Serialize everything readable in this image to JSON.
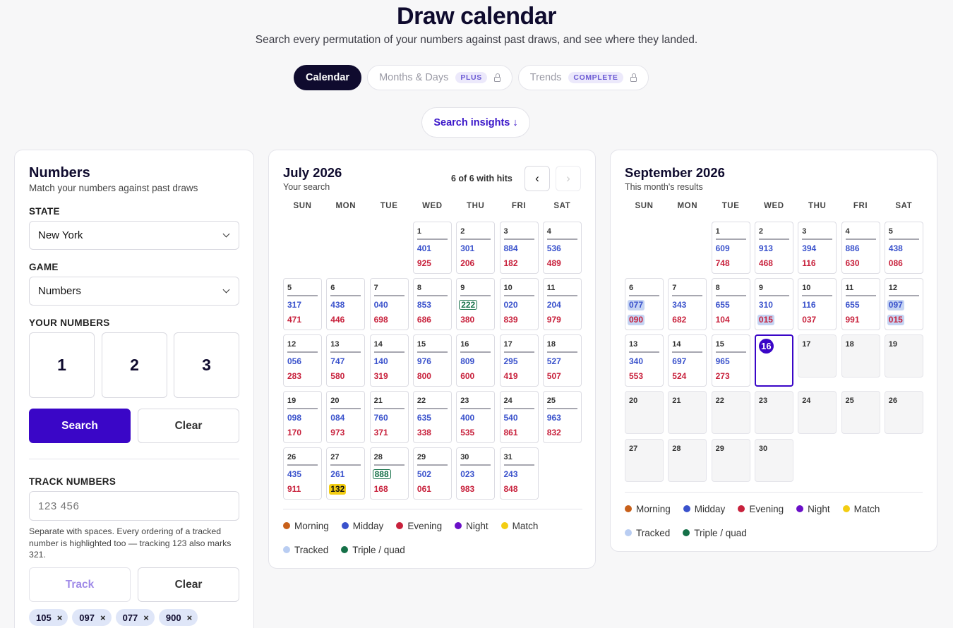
{
  "header": {
    "title": "Draw calendar",
    "subtitle": "Search every permutation of your numbers against past draws, and see where they landed."
  },
  "tabs": [
    {
      "label": "Calendar",
      "active": true
    },
    {
      "label": "Months & Days",
      "badge": "PLUS",
      "locked": true
    },
    {
      "label": "Trends",
      "badge": "COMPLETE",
      "locked": true
    }
  ],
  "insights_button": "Search insights ↓",
  "numbers_panel": {
    "title": "Numbers",
    "hint": "Match your numbers against past draws",
    "state_label": "STATE",
    "state_value": "New York",
    "game_label": "GAME",
    "game_value": "Numbers",
    "your_numbers_label": "YOUR NUMBERS",
    "digits": [
      "1",
      "2",
      "3"
    ],
    "search_label": "Search",
    "clear_label": "Clear",
    "track_label": "TRACK NUMBERS",
    "track_placeholder": "123 456",
    "track_help": "Separate with spaces. Every ordering of a tracked number is highlighted too — tracking 123 also marks 321.",
    "track_button": "Track",
    "track_clear": "Clear",
    "chips": [
      "105",
      "097",
      "077",
      "900"
    ],
    "chip_remove": "×"
  },
  "legend": {
    "colors": {
      "Morning": "#c8601a",
      "Midday": "#3a52cc",
      "Evening": "#c8213c",
      "Night": "#6a0fc8",
      "Match": "#f3cd12",
      "Tracked": "#b9cdf2",
      "Triple / quad": "#157048"
    },
    "items": [
      "Morning",
      "Midday",
      "Evening",
      "Night",
      "Match",
      "Tracked",
      "Triple / quad"
    ]
  },
  "weekdays": [
    "SUN",
    "MON",
    "TUE",
    "WED",
    "THU",
    "FRI",
    "SAT"
  ],
  "calendar_left": {
    "title": "July 2026",
    "subtitle": "Your search",
    "hits": "6 of 6 with hits",
    "prev": "‹",
    "next": "›",
    "first_weekday": 3,
    "days": [
      {
        "d": "1",
        "a": "401",
        "b": "925"
      },
      {
        "d": "2",
        "a": "301",
        "b": "206"
      },
      {
        "d": "3",
        "a": "884",
        "b": "182"
      },
      {
        "d": "4",
        "a": "536",
        "b": "489"
      },
      {
        "d": "5",
        "a": "317",
        "b": "471"
      },
      {
        "d": "6",
        "a": "438",
        "b": "446"
      },
      {
        "d": "7",
        "a": "040",
        "b": "698"
      },
      {
        "d": "8",
        "a": "853",
        "b": "686"
      },
      {
        "d": "9",
        "a": "222",
        "b": "380",
        "af": "trip"
      },
      {
        "d": "10",
        "a": "020",
        "b": "839"
      },
      {
        "d": "11",
        "a": "204",
        "b": "979"
      },
      {
        "d": "12",
        "a": "056",
        "b": "283"
      },
      {
        "d": "13",
        "a": "747",
        "b": "580"
      },
      {
        "d": "14",
        "a": "140",
        "b": "319"
      },
      {
        "d": "15",
        "a": "976",
        "b": "800"
      },
      {
        "d": "16",
        "a": "809",
        "b": "600"
      },
      {
        "d": "17",
        "a": "295",
        "b": "419"
      },
      {
        "d": "18",
        "a": "527",
        "b": "507"
      },
      {
        "d": "19",
        "a": "098",
        "b": "170"
      },
      {
        "d": "20",
        "a": "084",
        "b": "973"
      },
      {
        "d": "21",
        "a": "760",
        "b": "371"
      },
      {
        "d": "22",
        "a": "635",
        "b": "338"
      },
      {
        "d": "23",
        "a": "400",
        "b": "535"
      },
      {
        "d": "24",
        "a": "540",
        "b": "861"
      },
      {
        "d": "25",
        "a": "963",
        "b": "832"
      },
      {
        "d": "26",
        "a": "435",
        "b": "911"
      },
      {
        "d": "27",
        "a": "261",
        "b": "132",
        "bf": "mat"
      },
      {
        "d": "28",
        "a": "888",
        "b": "168",
        "af": "trip"
      },
      {
        "d": "29",
        "a": "502",
        "b": "061"
      },
      {
        "d": "30",
        "a": "023",
        "b": "983"
      },
      {
        "d": "31",
        "a": "243",
        "b": "848"
      }
    ]
  },
  "calendar_right": {
    "title": "September 2026",
    "subtitle": "This month's results",
    "first_weekday": 2,
    "today": "16",
    "days": [
      {
        "d": "1",
        "a": "609",
        "b": "748"
      },
      {
        "d": "2",
        "a": "913",
        "b": "468"
      },
      {
        "d": "3",
        "a": "394",
        "b": "116"
      },
      {
        "d": "4",
        "a": "886",
        "b": "630"
      },
      {
        "d": "5",
        "a": "438",
        "b": "086"
      },
      {
        "d": "6",
        "a": "077",
        "b": "090",
        "af": "trk",
        "bf": "trk"
      },
      {
        "d": "7",
        "a": "343",
        "b": "682"
      },
      {
        "d": "8",
        "a": "655",
        "b": "104"
      },
      {
        "d": "9",
        "a": "310",
        "b": "015",
        "bf": "trk"
      },
      {
        "d": "10",
        "a": "116",
        "b": "037"
      },
      {
        "d": "11",
        "a": "655",
        "b": "991"
      },
      {
        "d": "12",
        "a": "097",
        "b": "015",
        "af": "trk",
        "bf": "trk"
      },
      {
        "d": "13",
        "a": "340",
        "b": "553"
      },
      {
        "d": "14",
        "a": "697",
        "b": "524"
      },
      {
        "d": "15",
        "a": "965",
        "b": "273"
      },
      {
        "d": "16"
      },
      {
        "d": "17"
      },
      {
        "d": "18"
      },
      {
        "d": "19"
      },
      {
        "d": "20"
      },
      {
        "d": "21"
      },
      {
        "d": "22"
      },
      {
        "d": "23"
      },
      {
        "d": "24"
      },
      {
        "d": "25"
      },
      {
        "d": "26"
      },
      {
        "d": "27"
      },
      {
        "d": "28"
      },
      {
        "d": "29"
      },
      {
        "d": "30"
      }
    ]
  }
}
